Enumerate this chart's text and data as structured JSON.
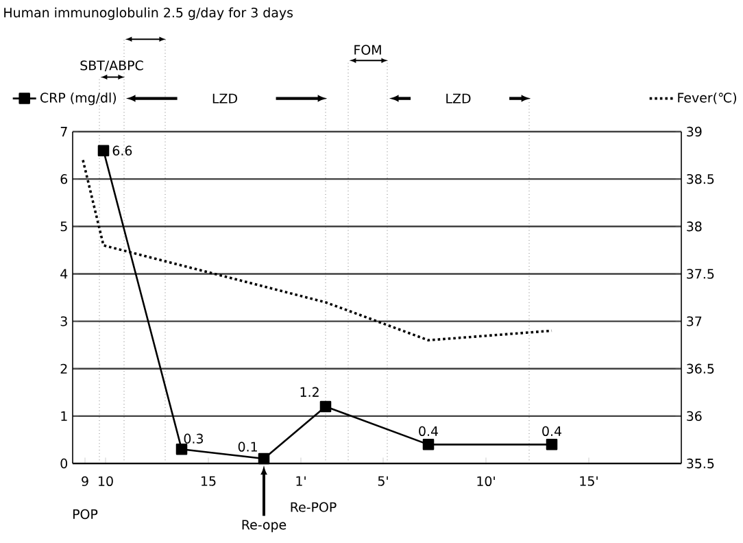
{
  "chart_data": {
    "type": "line",
    "title": "Human immunoglobulin 2.5 g/day for 3 days",
    "x": [
      9.9,
      13.7,
      17.7,
      20.7,
      25.7,
      31.7
    ],
    "xlim": [
      8.4,
      38
    ],
    "xticks": [
      9,
      10,
      15
    ],
    "x2lim": [
      -10.1,
      19.5
    ],
    "x2ticks": [
      {
        "value": 1,
        "label": "1'"
      },
      {
        "value": 5,
        "label": "5'"
      },
      {
        "value": 10,
        "label": "10'"
      },
      {
        "value": 15,
        "label": "15'"
      }
    ],
    "ylim": [
      0,
      7
    ],
    "yticks": [
      0,
      1,
      2,
      3,
      4,
      5,
      6,
      7
    ],
    "y2lim": [
      35.5,
      39
    ],
    "y2ticks": [
      35.5,
      36,
      36.5,
      37,
      37.5,
      38,
      38.5,
      39
    ],
    "grid": "y",
    "legend": "top",
    "series": [
      {
        "name": "CRP (mg/dl)",
        "color": "#000000",
        "marker": "square",
        "line_style": "solid",
        "values": [
          6.6,
          0.3,
          0.1,
          1.2,
          0.4,
          0.4
        ],
        "value_labels": [
          "6.6",
          "0.3",
          "0.1",
          "1.2",
          "0.4",
          "0.4"
        ]
      },
      {
        "name": "Fever(℃)",
        "color": "#000000",
        "marker": "none",
        "line_style": "dotted",
        "axis": "y2",
        "x": [
          8.9,
          9.9,
          20.7,
          25.7,
          31.7
        ],
        "values": [
          38.7,
          37.8,
          37.2,
          36.8,
          36.9
        ]
      }
    ],
    "ref_lines": [
      {
        "axis": "x",
        "value": 9.7,
        "line_style": "dotted"
      },
      {
        "axis": "x",
        "value": 10.9,
        "line_style": "dotted"
      },
      {
        "axis": "x",
        "value": 12.9,
        "line_style": "dotted"
      },
      {
        "axis": "x",
        "value": 20.7,
        "line_style": "dotted"
      },
      {
        "axis": "x",
        "value": 21.8,
        "line_style": "dotted"
      },
      {
        "axis": "x",
        "value": 23.7,
        "line_style": "dotted"
      },
      {
        "axis": "x",
        "value": 30.6,
        "line_style": "dotted"
      }
    ],
    "annotations": [
      {
        "text": "Re-ope",
        "x": 17.7,
        "y": 0
      },
      "Re-POP",
      "POP",
      "SBT/ABPC",
      "LZD",
      "FOM",
      "LZD"
    ]
  }
}
